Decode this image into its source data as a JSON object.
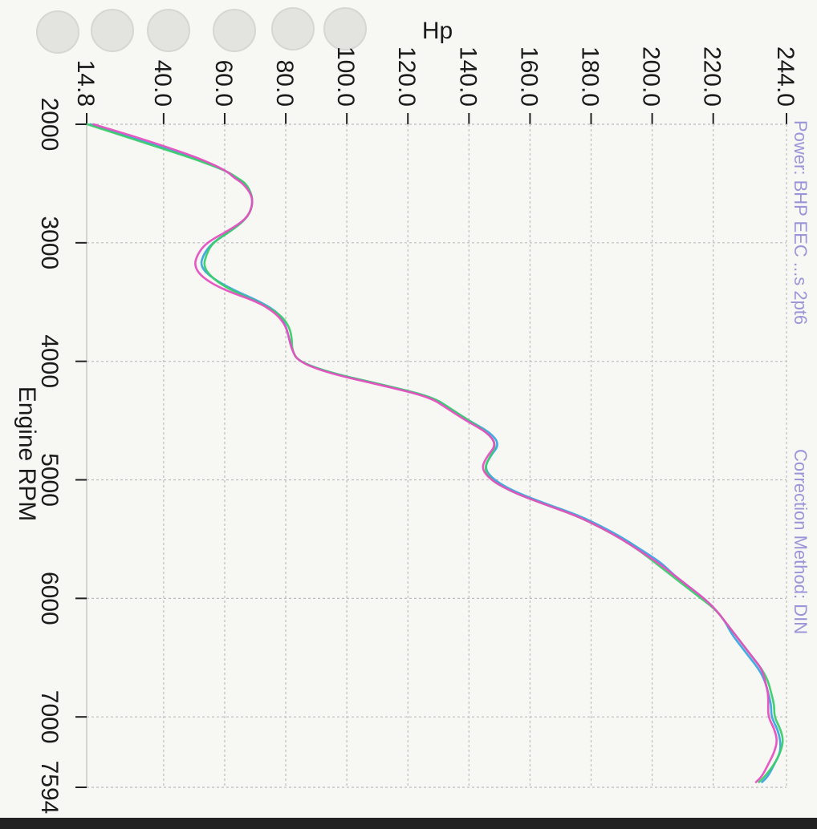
{
  "page": {
    "header_fragment_1": "Power: BHP EEC ...s 2pt6",
    "header_fragment_2": "Correction Method: DIN"
  },
  "chart_data": {
    "type": "line",
    "title": "",
    "xlabel": "Engine RPM",
    "ylabel": "Hp",
    "xlim": [
      2000,
      7594
    ],
    "ylim": [
      14.8,
      244.0
    ],
    "x_ticks": [
      2000,
      3000,
      4000,
      5000,
      6000,
      7000,
      7594
    ],
    "y_ticks": [
      14.8,
      40.0,
      60.0,
      80.0,
      100.0,
      120.0,
      140.0,
      160.0,
      180.0,
      200.0,
      220.0,
      244.0
    ],
    "x_tick_labels": [
      "2000",
      "3000",
      "4000",
      "5000",
      "6000",
      "7000",
      "7594"
    ],
    "y_tick_labels": [
      "14.8",
      "40.0",
      "60.0",
      "80.0",
      "100.0",
      "120.0",
      "140.0",
      "160.0",
      "180.0",
      "200.0",
      "220.0",
      "244.0"
    ],
    "grid": true,
    "orientation": "rotated-90-clockwise",
    "series": [
      {
        "color": "#39a5e0",
        "x": [
          2000,
          2100,
          2200,
          2300,
          2400,
          2450,
          2500,
          2600,
          2700,
          2800,
          2900,
          3000,
          3100,
          3200,
          3300,
          3400,
          3500,
          3600,
          3700,
          3800,
          3900,
          4000,
          4100,
          4200,
          4300,
          4400,
          4500,
          4600,
          4700,
          4800,
          4900,
          5000,
          5100,
          5200,
          5300,
          5400,
          5500,
          5600,
          5700,
          5800,
          5900,
          6000,
          6100,
          6200,
          6300,
          6400,
          6500,
          6600,
          6700,
          6800,
          6900,
          7000,
          7100,
          7200,
          7300,
          7400,
          7500,
          7550
        ],
        "y": [
          16,
          28,
          40,
          52,
          61,
          63,
          67,
          69,
          69,
          67,
          62,
          56,
          53,
          52,
          56,
          63,
          72,
          78,
          80,
          81,
          82,
          84,
          95,
          112,
          128,
          134,
          140,
          147,
          150,
          147,
          145,
          148,
          155,
          165,
          176,
          184,
          191,
          197,
          203,
          207,
          212,
          217,
          221,
          224,
          226,
          229,
          232,
          235,
          237,
          238,
          239,
          239,
          241,
          242,
          242,
          240,
          238,
          236
        ]
      },
      {
        "color": "#3ccc6c",
        "x": [
          2000,
          2100,
          2200,
          2300,
          2400,
          2450,
          2500,
          2600,
          2700,
          2800,
          2900,
          3000,
          3100,
          3200,
          3300,
          3400,
          3500,
          3600,
          3700,
          3800,
          3900,
          4000,
          4100,
          4200,
          4300,
          4400,
          4500,
          4600,
          4700,
          4800,
          4900,
          5000,
          5100,
          5200,
          5300,
          5400,
          5500,
          5600,
          5700,
          5800,
          5900,
          6000,
          6100,
          6200,
          6300,
          6400,
          6500,
          6600,
          6700,
          6800,
          6900,
          7000,
          7100,
          7200,
          7300,
          7400,
          7500,
          7550
        ],
        "y": [
          15,
          27,
          39,
          51,
          61,
          64,
          67,
          69,
          69,
          67,
          62,
          56,
          54,
          53,
          56,
          62,
          71,
          78,
          81,
          82,
          82,
          84,
          95,
          112,
          128,
          134,
          140,
          146,
          149,
          147,
          145,
          147,
          154,
          164,
          175,
          183,
          190,
          196,
          201,
          206,
          211,
          216,
          221,
          224,
          227,
          230,
          233,
          236,
          238,
          239,
          240,
          240,
          242,
          243,
          242,
          240,
          237,
          235
        ]
      },
      {
        "color": "#e64fc0",
        "x": [
          2000,
          2100,
          2200,
          2300,
          2400,
          2450,
          2500,
          2600,
          2700,
          2800,
          2900,
          3000,
          3100,
          3200,
          3300,
          3400,
          3500,
          3600,
          3700,
          3800,
          3900,
          4000,
          4100,
          4200,
          4300,
          4400,
          4500,
          4600,
          4700,
          4800,
          4900,
          5000,
          5100,
          5200,
          5300,
          5400,
          5500,
          5600,
          5700,
          5800,
          5900,
          6000,
          6100,
          6200,
          6300,
          6400,
          6500,
          6600,
          6700,
          6800,
          6900,
          7000,
          7100,
          7200,
          7300,
          7400,
          7500,
          7550
        ],
        "y": [
          17,
          30,
          42,
          53,
          61,
          63,
          66,
          69,
          69,
          67,
          61,
          54,
          51,
          50,
          53,
          60,
          71,
          77,
          80,
          81,
          82,
          84,
          94,
          111,
          127,
          133,
          139,
          146,
          149,
          146,
          144,
          147,
          154,
          164,
          175,
          183,
          190,
          196,
          202,
          207,
          212,
          217,
          221,
          224,
          227,
          230,
          233,
          236,
          237,
          238,
          238,
          238,
          240,
          241,
          240,
          238,
          236,
          234
        ]
      }
    ]
  }
}
